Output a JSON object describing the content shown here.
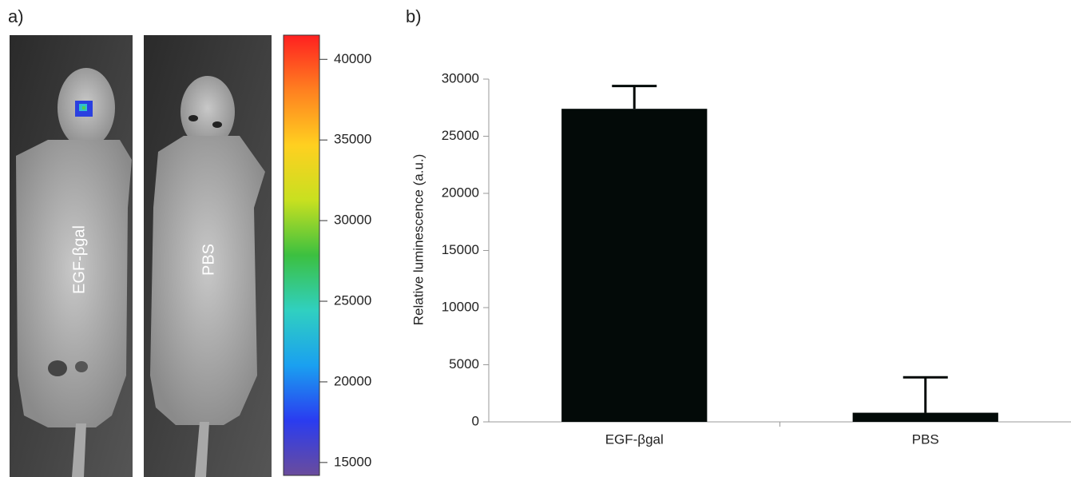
{
  "chart_data": [
    {
      "type": "image-panel",
      "panel_label": "a)",
      "images": [
        {
          "label": "EGF-βgal"
        },
        {
          "label": "PBS"
        }
      ],
      "colorbar": {
        "lim": [
          14200,
          41500
        ],
        "ticks": [
          15000,
          20000,
          25000,
          30000,
          35000,
          40000
        ],
        "colormap": [
          "#6a4c9c",
          "#2a3cf0",
          "#1aa0f0",
          "#30d0c0",
          "#3cc040",
          "#c8e020",
          "#ffd020",
          "#ff8020",
          "#ff2020"
        ]
      }
    },
    {
      "type": "bar",
      "panel_label": "b)",
      "y_label": "Relative luminescence (a.u.)",
      "categories": [
        "EGF-βgal",
        "PBS"
      ],
      "values": [
        27400,
        800
      ],
      "errors": [
        2000,
        3100
      ],
      "color": "#030a08",
      "ylim": [
        0,
        30000
      ],
      "yticks": [
        0,
        5000,
        10000,
        15000,
        20000,
        25000,
        30000
      ]
    }
  ]
}
